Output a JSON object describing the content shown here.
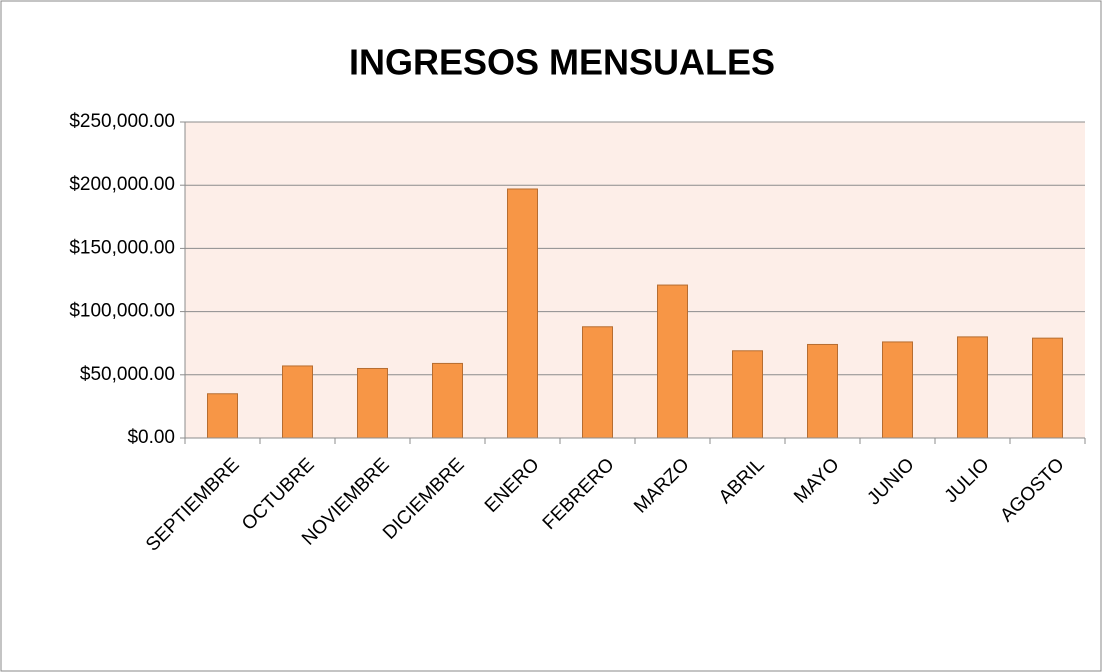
{
  "chart_data": {
    "type": "bar",
    "title": "INGRESOS MENSUALES",
    "categories": [
      "SEPTIEMBRE",
      "OCTUBRE",
      "NOVIEMBRE",
      "DICIEMBRE",
      "ENERO",
      "FEBRERO",
      "MARZO",
      "ABRIL",
      "MAYO",
      "JUNIO",
      "JULIO",
      "AGOSTO"
    ],
    "values": [
      35000,
      57000,
      55000,
      59000,
      197000,
      88000,
      121000,
      69000,
      74000,
      76000,
      80000,
      79000
    ],
    "color": "#f79646",
    "ylim": [
      0,
      250000
    ],
    "yticks": [
      {
        "value": 0,
        "label": "$0.00"
      },
      {
        "value": 50000,
        "label": "$50,000.00"
      },
      {
        "value": 100000,
        "label": "$100,000.00"
      },
      {
        "value": 150000,
        "label": "$150,000.00"
      },
      {
        "value": 200000,
        "label": "$200,000.00"
      },
      {
        "value": 250000,
        "label": "$250,000.00"
      }
    ],
    "grid": true
  }
}
